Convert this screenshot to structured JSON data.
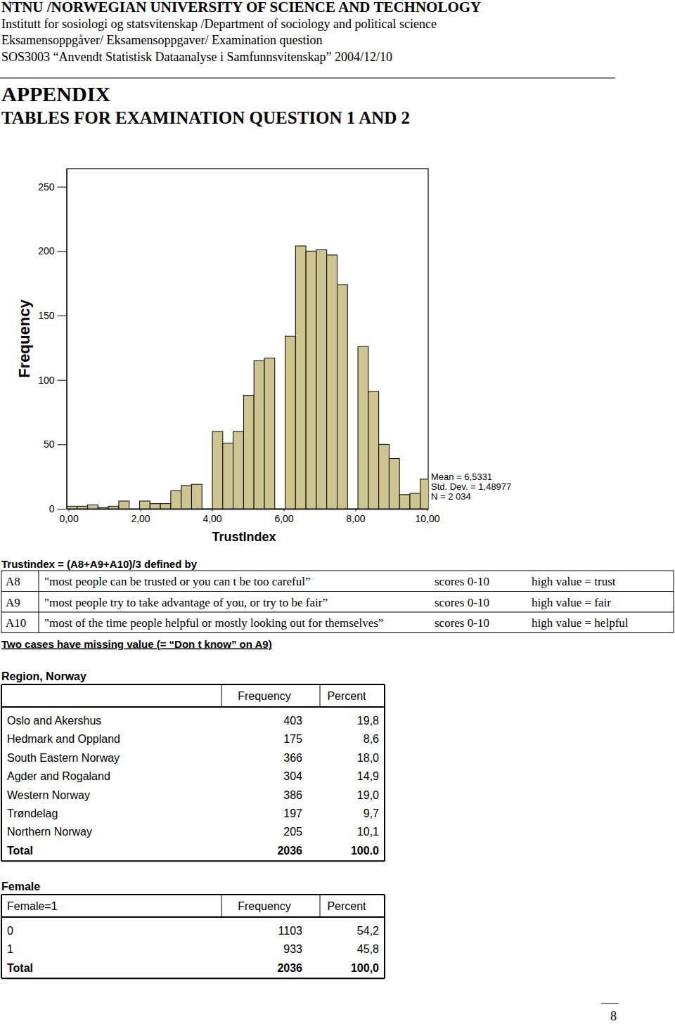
{
  "header": {
    "lines": [
      "NTNU /NORWEGIAN UNIVERSITY OF SCIENCE AND TECHNOLOGY",
      "Institutt for sosiologi og statsvitenskap /Department of sociology and political science",
      "Eksamensoppgåver/ Eksamensoppgaver/ Examination question",
      "SOS3003 “Anvendt Statistisk Dataanalyse i Samfunnsvitenskap” 2004/12/10"
    ]
  },
  "appendix": {
    "title": "APPENDIX",
    "subtitle": "TABLES FOR EXAMINATION QUESTION 1 AND 2"
  },
  "chart_data": {
    "type": "histogram",
    "bins": [
      -0.05,
      0.24,
      0.53,
      0.82,
      1.11,
      1.4,
      1.69,
      1.98,
      2.27,
      2.56,
      2.85,
      3.14,
      3.43,
      3.72,
      4.01,
      4.3,
      4.59,
      4.88,
      5.17,
      5.46,
      5.75,
      6.04,
      6.33,
      6.62,
      6.91,
      7.2,
      7.49,
      7.78,
      8.07,
      8.36,
      8.65,
      8.94,
      9.23,
      9.52,
      9.81,
      10.1
    ],
    "values": [
      2,
      2,
      3,
      1,
      2,
      6,
      0,
      6,
      4,
      4,
      14,
      18,
      19,
      0,
      60,
      51,
      60,
      88,
      115,
      117,
      0,
      134,
      204,
      200,
      201,
      197,
      174,
      0,
      126,
      91,
      50,
      39,
      11,
      12,
      23
    ],
    "color": "#cdc48f",
    "xlim": [
      -0.05,
      10.03
    ],
    "ylim": [
      0,
      264
    ],
    "xticks": [
      {
        "value": 0,
        "label": "0,00"
      },
      {
        "value": 2,
        "label": "2,00"
      },
      {
        "value": 4,
        "label": "4,00"
      },
      {
        "value": 6,
        "label": "6,00"
      },
      {
        "value": 8,
        "label": "8,00"
      },
      {
        "value": 10,
        "label": "10,00"
      }
    ],
    "yticks": [
      0,
      50,
      100,
      150,
      200,
      250
    ],
    "x_label": "TrustIndex",
    "y_label": "Frequency",
    "annotations": [
      "Mean = 6,5331",
      "Std. Dev. = 1,48977",
      "N = 2 034"
    ]
  },
  "definition": {
    "title": "Trustindex = (A8+A9+A10)/3 defined by",
    "rows": [
      [
        "A8",
        "\"most people can be trusted or you can t be too careful”",
        "scores 0-10",
        "high value = trust"
      ],
      [
        "A9",
        "\"most people try to take advantage of you, or try to be fair”",
        "scores 0-10",
        "high value = fair"
      ],
      [
        "A10",
        "\"most of the time people helpful or mostly looking out for themselves”",
        "scores 0-10",
        "high value = helpful"
      ]
    ],
    "note": "Two cases have missing value (= “Don t know” on A9)"
  },
  "region_table": {
    "title": "Region, Norway",
    "columns": [
      "Frequency",
      "Percent"
    ],
    "rows": [
      [
        "Oslo and Akershus",
        "403",
        "19,8"
      ],
      [
        "Hedmark and Oppland",
        "175",
        "8,6"
      ],
      [
        "South Eastern Norway",
        "366",
        "18,0"
      ],
      [
        "Agder and Rogaland",
        "304",
        "14,9"
      ],
      [
        "Western Norway",
        "386",
        "19,0"
      ],
      [
        "Trøndelag",
        "197",
        "9,7"
      ],
      [
        "Northern Norway",
        "205",
        "10,1"
      ]
    ],
    "total": [
      "Total",
      "2036",
      "100.0"
    ]
  },
  "female_table": {
    "title": "Female",
    "columns": [
      "Female=1",
      "Frequency",
      "Percent"
    ],
    "rows": [
      [
        "0",
        "1103",
        "54,2"
      ],
      [
        "1",
        "933",
        "45,8"
      ]
    ],
    "total": [
      "Total",
      "2036",
      "100,0"
    ]
  },
  "page_number": "8"
}
